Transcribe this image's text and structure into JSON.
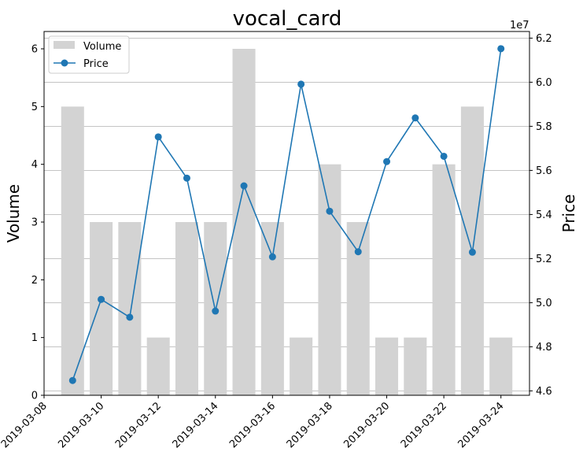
{
  "chart_data": {
    "type": "bar+line",
    "title": "vocal_card",
    "x": [
      "2019-03-09",
      "2019-03-10",
      "2019-03-11",
      "2019-03-12",
      "2019-03-13",
      "2019-03-14",
      "2019-03-15",
      "2019-03-16",
      "2019-03-17",
      "2019-03-18",
      "2019-03-19",
      "2019-03-20",
      "2019-03-21",
      "2019-03-22",
      "2019-03-23",
      "2019-03-24"
    ],
    "x_tick_labels": [
      "2019-03-08",
      "2019-03-10",
      "2019-03-12",
      "2019-03-14",
      "2019-03-16",
      "2019-03-18",
      "2019-03-20",
      "2019-03-22",
      "2019-03-24"
    ],
    "x_range": [
      "2019-03-08",
      "2019-03-25"
    ],
    "series": [
      {
        "name": "Volume",
        "type": "bar",
        "axis": "left",
        "color": "#d3d3d3",
        "values": [
          5,
          3,
          3,
          1,
          3,
          3,
          6,
          3,
          1,
          4,
          3,
          1,
          1,
          4,
          5,
          1
        ]
      },
      {
        "name": "Price",
        "type": "line",
        "axis": "right",
        "color": "#1f77b4",
        "values": [
          46470000,
          50150000,
          49340000,
          57520000,
          55650000,
          49620000,
          55300000,
          52080000,
          59910000,
          54150000,
          52310000,
          56400000,
          58380000,
          56640000,
          52290000,
          61520000
        ]
      }
    ],
    "y_left": {
      "label": "Volume",
      "range": [
        0,
        6.3
      ],
      "ticks": [
        "0",
        "1",
        "2",
        "3",
        "4",
        "5",
        "6"
      ]
    },
    "y_right": {
      "label": "Price",
      "range": [
        45800000,
        62300000
      ],
      "offset_text": "1e7",
      "ticks": [
        "4.6",
        "4.8",
        "5.0",
        "5.2",
        "5.4",
        "5.6",
        "5.8",
        "6.0",
        "6.2"
      ]
    },
    "grid": "horizontal (right axis)",
    "legend": "top-left"
  }
}
